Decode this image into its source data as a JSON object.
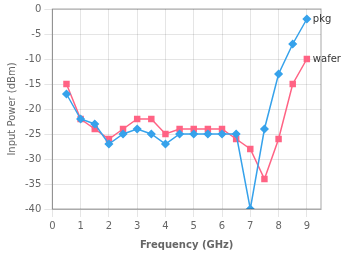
{
  "chart_data": {
    "type": "line",
    "xlabel": "Frequency (GHz)",
    "ylabel": "Input Power (dBm)",
    "x": [
      0.5,
      1.0,
      1.5,
      2.0,
      2.5,
      3.0,
      3.5,
      4.0,
      4.5,
      5.0,
      5.5,
      6.0,
      6.5,
      7.0,
      7.5,
      8.0,
      8.5,
      9.0
    ],
    "series": [
      {
        "name": "pkg",
        "marker": "diamond",
        "values": [
          -17,
          -22,
          -23,
          -27,
          -25,
          -24,
          -25,
          -27,
          -25,
          -25,
          -25,
          -25,
          -25,
          -40,
          -24,
          -13,
          -7,
          -2
        ]
      },
      {
        "name": "wafer",
        "marker": "square",
        "values": [
          -15,
          -22,
          -24,
          -26,
          -24,
          -22,
          -22,
          -25,
          -24,
          -24,
          -24,
          -24,
          -26,
          -28,
          -34,
          -26,
          -15,
          -10
        ]
      }
    ],
    "xlim": [
      0,
      9.5
    ],
    "ylim": [
      -40,
      0
    ],
    "xticks": [
      0,
      1,
      2,
      3,
      4,
      5,
      6,
      7,
      8,
      9
    ],
    "yticks": [
      0,
      -5,
      -10,
      -15,
      -20,
      -25,
      -30,
      -35,
      -40
    ],
    "grid": true
  }
}
